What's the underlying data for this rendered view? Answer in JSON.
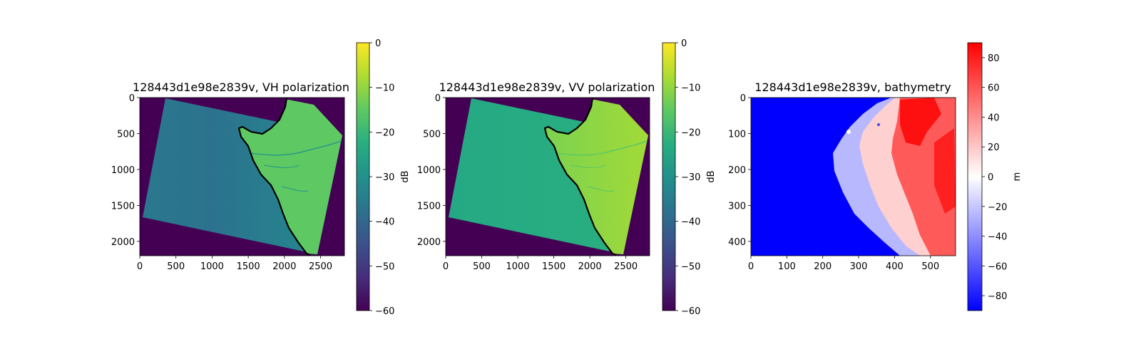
{
  "chart_data": [
    {
      "type": "heatmap",
      "title": "128443d1e98e2839v, VH polarization",
      "xlim": [
        0,
        2830
      ],
      "ylim": [
        2200,
        0
      ],
      "xticks": [
        0,
        500,
        1000,
        1500,
        2000,
        2500
      ],
      "yticks": [
        0,
        500,
        1000,
        1500,
        2000
      ],
      "colormap": "viridis",
      "colorbar": {
        "label": "dB",
        "min": -60,
        "max": 0,
        "ticks": [
          0,
          -10,
          -20,
          -30,
          -40,
          -50,
          -60
        ]
      },
      "background_value": -60,
      "sea_value_near": -33,
      "sea_value_far": -36,
      "land_value": -18,
      "river_value": -28,
      "coastline_color": "#000000"
    },
    {
      "type": "heatmap",
      "title": "128443d1e98e2839v, VV polarization",
      "xlim": [
        0,
        2830
      ],
      "ylim": [
        2200,
        0
      ],
      "xticks": [
        0,
        500,
        1000,
        1500,
        2000,
        2500
      ],
      "yticks": [
        0,
        500,
        1000,
        1500,
        2000
      ],
      "colormap": "viridis",
      "colorbar": {
        "label": "dB",
        "min": -60,
        "max": 0,
        "ticks": [
          0,
          -10,
          -20,
          -30,
          -40,
          -50,
          -60
        ]
      },
      "background_value": -60,
      "sea_value_near": -23,
      "sea_value_far": -24,
      "land_value": -10,
      "river_value": -20,
      "coastline_color": "#000000"
    },
    {
      "type": "heatmap",
      "title": "128443d1e98e2839v, bathymetry",
      "xlim": [
        0,
        570
      ],
      "ylim": [
        440,
        0
      ],
      "xticks": [
        0,
        100,
        200,
        300,
        400,
        500
      ],
      "yticks": [
        0,
        100,
        200,
        300,
        400
      ],
      "colormap": "bwr",
      "colorbar": {
        "label": "m",
        "min": -90,
        "max": 90,
        "ticks": [
          80,
          60,
          40,
          20,
          0,
          -20,
          -40,
          -60,
          -80
        ]
      },
      "deep_value": -90,
      "shelf_value": -30,
      "coast_value": 5,
      "highland_value": 75
    }
  ]
}
